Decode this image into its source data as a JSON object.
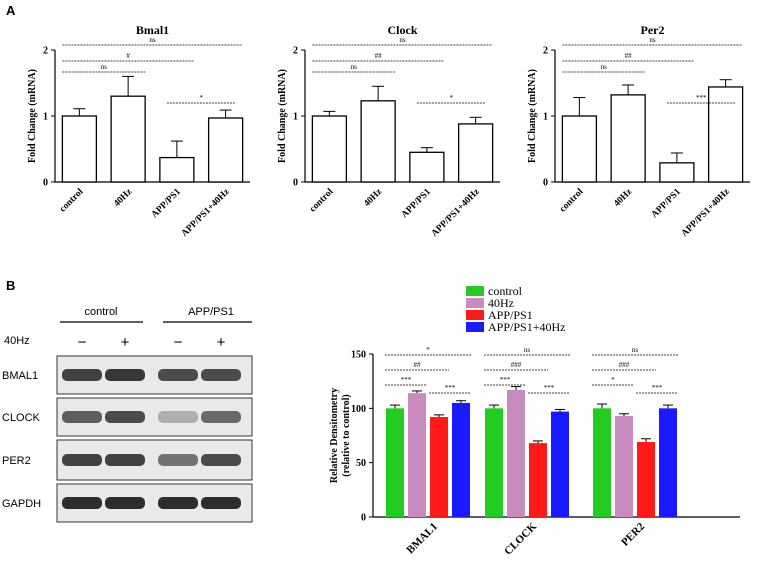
{
  "panel_labels": {
    "a": "A",
    "b": "B"
  },
  "chart_data": [
    {
      "type": "bar",
      "title": "Bmal1",
      "ylabel": "Fold Change (mRNA)",
      "categories": [
        "control",
        "40Hz",
        "APP/PS1",
        "APP/PS1+40Hz"
      ],
      "values": [
        1.0,
        1.3,
        0.37,
        0.97
      ],
      "errors": [
        0.11,
        0.3,
        0.25,
        0.12
      ],
      "ylim": [
        0,
        2
      ],
      "yticks": [
        "0",
        "1",
        "2"
      ],
      "comparisons": [
        {
          "from": 0,
          "to": 3,
          "label": "ns"
        },
        {
          "from": 0,
          "to": 2,
          "label": "#"
        },
        {
          "from": 0,
          "to": 1,
          "label": "ns"
        },
        {
          "from": 2,
          "to": 3,
          "label": "*"
        }
      ]
    },
    {
      "type": "bar",
      "title": "Clock",
      "ylabel": "Fold Change (mRNA)",
      "categories": [
        "control",
        "40Hz",
        "APP/PS1",
        "APP/PS1+40Hz"
      ],
      "values": [
        1.0,
        1.23,
        0.45,
        0.88
      ],
      "errors": [
        0.07,
        0.22,
        0.07,
        0.1
      ],
      "ylim": [
        0,
        2
      ],
      "yticks": [
        "0",
        "1",
        "2"
      ],
      "comparisons": [
        {
          "from": 0,
          "to": 3,
          "label": "ns"
        },
        {
          "from": 0,
          "to": 2,
          "label": "##"
        },
        {
          "from": 0,
          "to": 1,
          "label": "ns"
        },
        {
          "from": 2,
          "to": 3,
          "label": "*"
        }
      ]
    },
    {
      "type": "bar",
      "title": "Per2",
      "ylabel": "Fold Change (mRNA)",
      "categories": [
        "control",
        "40Hz",
        "APP/PS1",
        "APP/PS1+40Hz"
      ],
      "values": [
        1.0,
        1.32,
        0.29,
        1.44
      ],
      "errors": [
        0.28,
        0.15,
        0.15,
        0.11
      ],
      "ylim": [
        0,
        2
      ],
      "yticks": [
        "0",
        "1",
        "2"
      ],
      "comparisons": [
        {
          "from": 0,
          "to": 3,
          "label": "ns"
        },
        {
          "from": 0,
          "to": 2,
          "label": "##"
        },
        {
          "from": 0,
          "to": 1,
          "label": "ns"
        },
        {
          "from": 2,
          "to": 3,
          "label": "***"
        }
      ]
    },
    {
      "type": "bar",
      "ylabel": "Relative Densitometry",
      "ylabel2": "(relative to control)",
      "categories": [
        "BMAL1",
        "CLOCK",
        "PER2"
      ],
      "ylim": [
        0,
        150
      ],
      "yticks": [
        "0",
        "50",
        "100",
        "150"
      ],
      "series": [
        {
          "name": "control",
          "color": "#22cc22",
          "values": [
            100,
            100,
            100
          ],
          "errors": [
            3,
            3,
            4
          ]
        },
        {
          "name": "40Hz",
          "color": "#c78bbe",
          "values": [
            114,
            117,
            93
          ],
          "errors": [
            2,
            3,
            2
          ]
        },
        {
          "name": "APP/PS1",
          "color": "#ff1a1a",
          "values": [
            92,
            68,
            69
          ],
          "errors": [
            2,
            2,
            3
          ]
        },
        {
          "name": "APP/PS1+40Hz",
          "color": "#1a1aff",
          "values": [
            105,
            97,
            100
          ],
          "errors": [
            2,
            2,
            3
          ]
        }
      ],
      "comparisons": [
        [
          {
            "from": 0,
            "to": 3,
            "label": "*"
          },
          {
            "from": 0,
            "to": 2,
            "label": "##"
          },
          {
            "from": 0,
            "to": 1,
            "label": "***"
          },
          {
            "from": 2,
            "to": 3,
            "label": "***"
          }
        ],
        [
          {
            "from": 0,
            "to": 3,
            "label": "ns"
          },
          {
            "from": 0,
            "to": 2,
            "label": "###"
          },
          {
            "from": 0,
            "to": 1,
            "label": "***"
          },
          {
            "from": 2,
            "to": 3,
            "label": "***"
          }
        ],
        [
          {
            "from": 0,
            "to": 3,
            "label": "ns"
          },
          {
            "from": 0,
            "to": 2,
            "label": "###"
          },
          {
            "from": 0,
            "to": 1,
            "label": "*"
          },
          {
            "from": 2,
            "to": 3,
            "label": "***"
          }
        ]
      ]
    }
  ],
  "western_blot": {
    "groups": [
      "control",
      "APP/PS1"
    ],
    "treatment_label": "40Hz",
    "lane_signs": [
      "−",
      "+",
      "−",
      "+"
    ],
    "bands": [
      {
        "label": "BMAL1",
        "intensity": [
          0.85,
          0.9,
          0.8,
          0.8
        ]
      },
      {
        "label": "CLOCK",
        "intensity": [
          0.7,
          0.8,
          0.3,
          0.65
        ]
      },
      {
        "label": "PER2",
        "intensity": [
          0.85,
          0.85,
          0.6,
          0.8
        ]
      },
      {
        "label": "GAPDH",
        "intensity": [
          0.95,
          0.95,
          0.95,
          0.95
        ]
      }
    ]
  }
}
